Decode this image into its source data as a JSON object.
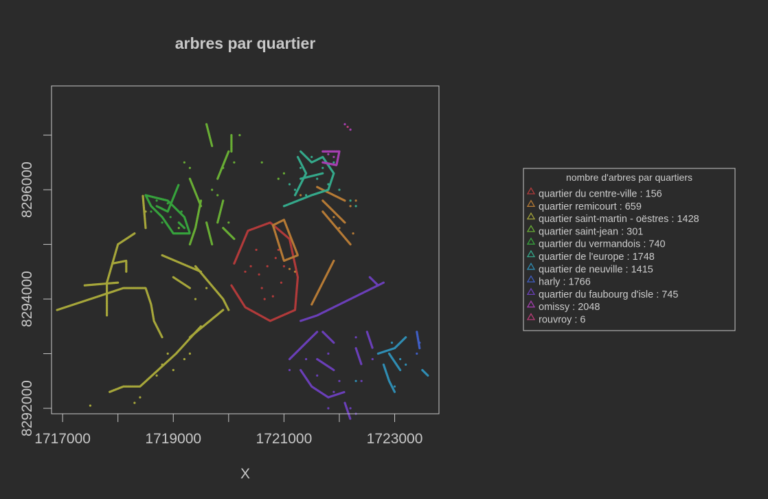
{
  "chart_data": {
    "type": "scatter",
    "title": "arbres par quartier",
    "xlabel": "X",
    "ylabel": "",
    "xlim": [
      1716800,
      1723800
    ],
    "ylim": [
      8291900,
      8297900
    ],
    "x_ticks": [
      1717000,
      1719000,
      1721000,
      1723000
    ],
    "x_tick_labels": [
      "1717000",
      "1719000",
      "1721000",
      "1723000"
    ],
    "x_minor_ticks": [
      1718000,
      1720000,
      1722000
    ],
    "y_ticks": [
      8292000,
      8294000,
      8296000
    ],
    "y_tick_labels": [
      "8292000",
      "8294000",
      "8296000"
    ],
    "y_minor_ticks": [
      8293000,
      8295000,
      8297000
    ],
    "background": "#2b2b2b",
    "foreground": "#c8c8c8",
    "legend": {
      "title": "nombre d'arbres par quartiers",
      "position": "right",
      "marker": "△"
    },
    "series": [
      {
        "name": "quartier du centre-ville",
        "count": "156",
        "color": "#b13a3a",
        "lines": [
          [
            [
              1720100,
              8294650
            ],
            [
              1720350,
              8295250
            ],
            [
              1720750,
              8295400
            ],
            [
              1721100,
              8295100
            ],
            [
              1721250,
              8294400
            ],
            [
              1721200,
              8293800
            ],
            [
              1720750,
              8293600
            ],
            [
              1720300,
              8293850
            ],
            [
              1720050,
              8294250
            ]
          ]
        ],
        "points": [
          [
            1720500,
            8294900
          ],
          [
            1720700,
            8294600
          ],
          [
            1720900,
            8294900
          ],
          [
            1720600,
            8294200
          ],
          [
            1720400,
            8294600
          ],
          [
            1720950,
            8294300
          ],
          [
            1720800,
            8294050
          ],
          [
            1720300,
            8294500
          ],
          [
            1721000,
            8294600
          ],
          [
            1720550,
            8294450
          ],
          [
            1720850,
            8294750
          ],
          [
            1720650,
            8294000
          ]
        ]
      },
      {
        "name": "quartier remicourt",
        "count": "659",
        "color": "#b57a35",
        "lines": [
          [
            [
              1720800,
              8295350
            ],
            [
              1721000,
              8295450
            ],
            [
              1721250,
              8294800
            ],
            [
              1721000,
              8294700
            ],
            [
              1720800,
              8295350
            ]
          ],
          [
            [
              1721500,
              8293900
            ],
            [
              1721900,
              8294700
            ]
          ],
          [
            [
              1721600,
              8296050
            ],
            [
              1722100,
              8295800
            ]
          ],
          [
            [
              1721700,
              8295600
            ],
            [
              1722200,
              8295000
            ]
          ],
          [
            [
              1721700,
              8295800
            ],
            [
              1722100,
              8295400
            ]
          ]
        ],
        "points": [
          [
            1721200,
            8294500
          ],
          [
            1721100,
            8294550
          ],
          [
            1721300,
            8295900
          ],
          [
            1722200,
            8295700
          ],
          [
            1722300,
            8295800
          ],
          [
            1721900,
            8295500
          ],
          [
            1722250,
            8295200
          ],
          [
            1722000,
            8295300
          ]
        ]
      },
      {
        "name": "quartier saint-martin - oëstres",
        "count": "1428",
        "color": "#a6a63a",
        "lines": [
          [
            [
              1716900,
              8293800
            ],
            [
              1717500,
              8294000
            ],
            [
              1718100,
              8294200
            ],
            [
              1718500,
              8294200
            ],
            [
              1718600,
              8293900
            ],
            [
              1718650,
              8293600
            ],
            [
              1718800,
              8293300
            ]
          ],
          [
            [
              1717800,
              8293700
            ],
            [
              1717800,
              8294300
            ],
            [
              1718000,
              8295000
            ],
            [
              1718300,
              8295200
            ]
          ],
          [
            [
              1717400,
              8294250
            ],
            [
              1718000,
              8294300
            ]
          ],
          [
            [
              1718150,
              8294500
            ],
            [
              1718150,
              8294700
            ],
            [
              1717900,
              8294650
            ]
          ],
          [
            [
              1719500,
              8293500
            ],
            [
              1719050,
              8293000
            ],
            [
              1718400,
              8292400
            ],
            [
              1718100,
              8292400
            ],
            [
              1717850,
              8292300
            ]
          ],
          [
            [
              1718800,
              8294800
            ],
            [
              1719500,
              8294500
            ]
          ],
          [
            [
              1719400,
              8294600
            ],
            [
              1719900,
              8294000
            ],
            [
              1720000,
              8293800
            ]
          ],
          [
            [
              1718500,
              8295300
            ],
            [
              1718450,
              8295900
            ]
          ],
          [
            [
              1719000,
              8294400
            ],
            [
              1719300,
              8294200
            ]
          ],
          [
            [
              1719300,
              8293300
            ],
            [
              1719900,
              8293800
            ]
          ]
        ],
        "points": [
          [
            1717500,
            8292050
          ],
          [
            1718800,
            8292800
          ],
          [
            1718900,
            8293000
          ],
          [
            1719200,
            8292900
          ],
          [
            1718700,
            8292600
          ],
          [
            1719000,
            8292700
          ],
          [
            1718400,
            8292200
          ],
          [
            1719300,
            8293000
          ],
          [
            1718500,
            8295600
          ],
          [
            1719600,
            8294200
          ],
          [
            1719400,
            8294000
          ],
          [
            1718300,
            8292100
          ]
        ]
      },
      {
        "name": "quartier saint-jean",
        "count": "301",
        "color": "#68ad34",
        "lines": [
          [
            [
              1719600,
              8297200
            ],
            [
              1719700,
              8296800
            ]
          ],
          [
            [
              1719800,
              8296200
            ],
            [
              1720000,
              8296700
            ]
          ],
          [
            [
              1719500,
              8295800
            ],
            [
              1719400,
              8295300
            ],
            [
              1719300,
              8295000
            ]
          ],
          [
            [
              1719600,
              8295400
            ],
            [
              1719700,
              8295000
            ]
          ],
          [
            [
              1719900,
              8295300
            ],
            [
              1720100,
              8295100
            ]
          ],
          [
            [
              1719300,
              8296200
            ],
            [
              1719500,
              8295700
            ]
          ],
          [
            [
              1720050,
              8296700
            ],
            [
              1720050,
              8297000
            ]
          ],
          [
            [
              1719900,
              8295800
            ],
            [
              1719800,
              8295400
            ]
          ]
        ],
        "points": [
          [
            1720100,
            8296500
          ],
          [
            1719900,
            8296400
          ],
          [
            1719200,
            8296500
          ],
          [
            1719300,
            8296400
          ],
          [
            1720200,
            8297000
          ],
          [
            1720000,
            8295400
          ],
          [
            1721000,
            8296300
          ],
          [
            1720900,
            8296200
          ],
          [
            1720600,
            8296500
          ],
          [
            1719800,
            8295900
          ],
          [
            1719700,
            8296000
          ],
          [
            1719100,
            8295300
          ]
        ]
      },
      {
        "name": "quartier du vermandois",
        "count": "740",
        "color": "#36a23c",
        "lines": [
          [
            [
              1718500,
              8295900
            ],
            [
              1718900,
              8295800
            ],
            [
              1719200,
              8295500
            ],
            [
              1719300,
              8295200
            ],
            [
              1719000,
              8295200
            ],
            [
              1718800,
              8295500
            ],
            [
              1718600,
              8295700
            ],
            [
              1718500,
              8295900
            ]
          ],
          [
            [
              1718700,
              8295700
            ],
            [
              1718900,
              8295600
            ],
            [
              1719100,
              8296100
            ]
          ],
          [
            [
              1719100,
              8295400
            ],
            [
              1719200,
              8295300
            ]
          ]
        ],
        "points": [
          [
            1718900,
            8295750
          ],
          [
            1718800,
            8295650
          ],
          [
            1718700,
            8295800
          ],
          [
            1718950,
            8295500
          ],
          [
            1718600,
            8295600
          ],
          [
            1718800,
            8295400
          ],
          [
            1719150,
            8295600
          ]
        ]
      },
      {
        "name": "quartier de l'europe",
        "count": "1748",
        "color": "#34a88a",
        "lines": [
          [
            [
              1721000,
              8295700
            ],
            [
              1721500,
              8295900
            ],
            [
              1721800,
              8296000
            ],
            [
              1721900,
              8296300
            ],
            [
              1721700,
              8296600
            ],
            [
              1721500,
              8296500
            ],
            [
              1721300,
              8296700
            ]
          ],
          [
            [
              1721250,
              8296600
            ],
            [
              1721400,
              8296300
            ],
            [
              1721200,
              8295900
            ]
          ],
          [
            [
              1721300,
              8296200
            ],
            [
              1721700,
              8296300
            ]
          ]
        ],
        "points": [
          [
            1721100,
            8296100
          ],
          [
            1721200,
            8296000
          ],
          [
            1721600,
            8296200
          ],
          [
            1721800,
            8296100
          ],
          [
            1721700,
            8296400
          ],
          [
            1721400,
            8295900
          ],
          [
            1721900,
            8296500
          ],
          [
            1722000,
            8296000
          ],
          [
            1722200,
            8295800
          ],
          [
            1722300,
            8295700
          ],
          [
            1721500,
            8296600
          ],
          [
            1721300,
            8296400
          ]
        ]
      },
      {
        "name": "quartier de neuville",
        "count": "1415",
        "color": "#2f8db3",
        "lines": [
          [
            [
              1722700,
              8293000
            ],
            [
              1723000,
              8293100
            ],
            [
              1723200,
              8293300
            ]
          ],
          [
            [
              1722800,
              8292800
            ],
            [
              1722900,
              8292500
            ],
            [
              1723000,
              8292300
            ]
          ],
          [
            [
              1722900,
              8293000
            ],
            [
              1723100,
              8292700
            ]
          ],
          [
            [
              1723500,
              8292700
            ],
            [
              1723600,
              8292600
            ]
          ]
        ],
        "points": [
          [
            1722300,
            8292500
          ],
          [
            1723100,
            8292900
          ],
          [
            1723200,
            8292800
          ],
          [
            1722950,
            8293200
          ],
          [
            1723000,
            8292400
          ]
        ]
      },
      {
        "name": "harly",
        "count": "1766",
        "color": "#3f5ec4",
        "lines": [
          [
            [
              1723450,
              8293100
            ],
            [
              1723400,
              8293400
            ]
          ]
        ],
        "points": [
          [
            1723400,
            8293000
          ],
          [
            1723450,
            8293200
          ]
        ]
      },
      {
        "name": "quartier du faubourg d'isle",
        "count": "745",
        "color": "#6a3fb8",
        "lines": [
          [
            [
              1721300,
              8293600
            ],
            [
              1721600,
              8293700
            ],
            [
              1722000,
              8293900
            ],
            [
              1722400,
              8294100
            ],
            [
              1722800,
              8294300
            ]
          ],
          [
            [
              1721100,
              8292900
            ],
            [
              1721400,
              8293200
            ],
            [
              1721600,
              8293400
            ]
          ],
          [
            [
              1721300,
              8292700
            ],
            [
              1721500,
              8292400
            ],
            [
              1721800,
              8292200
            ],
            [
              1722100,
              8292300
            ]
          ],
          [
            [
              1721600,
              8292900
            ],
            [
              1721900,
              8292700
            ]
          ],
          [
            [
              1722300,
              8293100
            ],
            [
              1722400,
              8292800
            ]
          ],
          [
            [
              1722500,
              8293400
            ],
            [
              1722600,
              8293100
            ]
          ],
          [
            [
              1722100,
              8292100
            ],
            [
              1722200,
              8291800
            ]
          ],
          [
            [
              1722550,
              8294400
            ],
            [
              1722700,
              8294250
            ]
          ],
          [
            [
              1721700,
              8293400
            ],
            [
              1721900,
              8293200
            ]
          ]
        ],
        "points": [
          [
            1721100,
            8292700
          ],
          [
            1722400,
            8292500
          ],
          [
            1721600,
            8292600
          ],
          [
            1721800,
            8293000
          ],
          [
            1722600,
            8292900
          ],
          [
            1722000,
            8292500
          ],
          [
            1722200,
            8292000
          ],
          [
            1721800,
            8292000
          ],
          [
            1722300,
            8293300
          ],
          [
            1721400,
            8292900
          ],
          [
            1722300,
            8291900
          ],
          [
            1721900,
            8292300
          ]
        ]
      },
      {
        "name": "omissy",
        "count": "2048",
        "color": "#a53fb0",
        "lines": [
          [
            [
              1721700,
              8296700
            ],
            [
              1722000,
              8296700
            ],
            [
              1721950,
              8296450
            ],
            [
              1721700,
              8296500
            ]
          ]
        ],
        "points": [
          [
            1722100,
            8297200
          ],
          [
            1722200,
            8297100
          ],
          [
            1721900,
            8296600
          ],
          [
            1721800,
            8296650
          ]
        ]
      },
      {
        "name": "rouvroy",
        "count": "6",
        "color": "#b83c78",
        "lines": [],
        "points": [
          [
            1722150,
            8297150
          ]
        ]
      }
    ]
  }
}
